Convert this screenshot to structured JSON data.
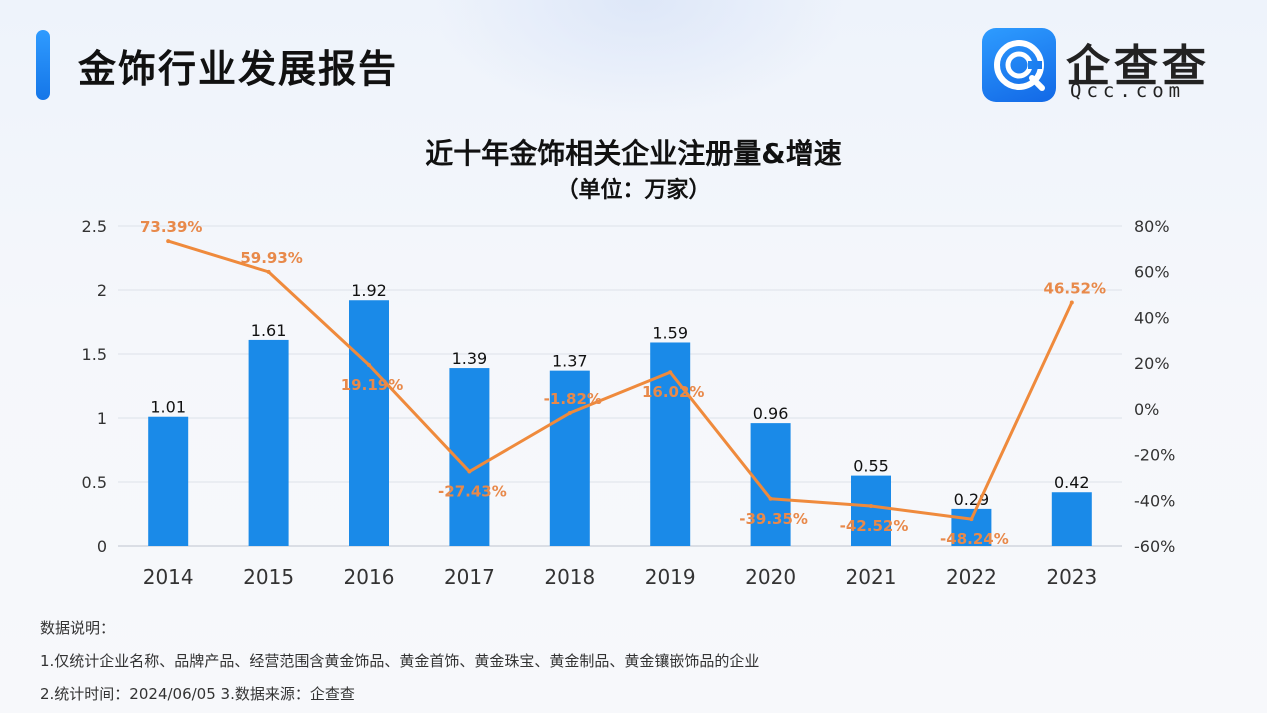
{
  "header": {
    "title": "金饰行业发展报告"
  },
  "logo": {
    "name": "企查查",
    "sub": "Qcc.com",
    "colors": {
      "start": "#2e9cff",
      "end": "#1268e6"
    }
  },
  "chart_data": {
    "type": "bar",
    "title": "近十年金饰相关企业注册量&增速",
    "subtitle": "（单位：万家）",
    "categories": [
      "2014",
      "2015",
      "2016",
      "2017",
      "2018",
      "2019",
      "2020",
      "2021",
      "2022",
      "2023"
    ],
    "series": [
      {
        "type": "bar",
        "color": "#1a8ae8",
        "values": [
          1.01,
          1.61,
          1.92,
          1.39,
          1.37,
          1.59,
          0.96,
          0.55,
          0.29,
          0.42
        ],
        "labels": [
          "1.01",
          "1.61",
          "1.92",
          "1.39",
          "1.37",
          "1.59",
          "0.96",
          "0.55",
          "0.29",
          "0.42"
        ]
      },
      {
        "type": "line",
        "axis": "right",
        "color": "#ef8a3c",
        "values": [
          73.39,
          59.93,
          19.19,
          -27.43,
          -1.82,
          16.02,
          -39.35,
          -42.52,
          -48.24,
          46.52
        ],
        "labels": [
          "73.39%",
          "59.93%",
          "19.19%",
          "-27.43%",
          "-1.82%",
          "16.02%",
          "-39.35%",
          "-42.52%",
          "-48.24%",
          "46.52%"
        ]
      }
    ],
    "ylim": [
      0,
      2.5
    ],
    "yticks": [
      "0",
      "0.5",
      "1",
      "1.5",
      "2",
      "2.5"
    ],
    "y2lim": [
      -60,
      80
    ],
    "y2ticks": [
      "-60%",
      "-40%",
      "-20%",
      "0%",
      "20%",
      "40%",
      "60%",
      "80%"
    ],
    "grid": true,
    "legend": "none"
  },
  "notes": {
    "heading": "数据说明：",
    "line1": "1.仅统计企业名称、品牌产品、经营范围含黄金饰品、黄金首饰、黄金珠宝、黄金制品、黄金镶嵌饰品的企业",
    "line2": "2.统计时间：2024/06/05    3.数据来源：企查查"
  }
}
